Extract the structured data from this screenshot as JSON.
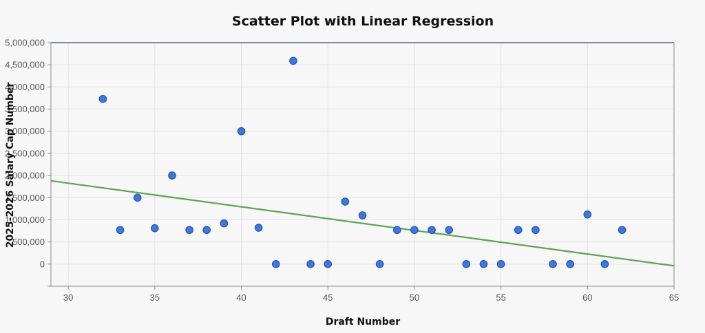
{
  "chart_data": {
    "type": "scatter",
    "title": "Scatter Plot with Linear Regression",
    "xlabel": "Draft Number",
    "ylabel": "2025-2026 Salary Cap Number",
    "xlim": [
      29,
      65
    ],
    "ylim": [
      -500000,
      5000000
    ],
    "x_ticks": [
      30,
      35,
      40,
      45,
      50,
      55,
      60,
      65
    ],
    "x_tick_labels": [
      "30",
      "35",
      "40",
      "45",
      "50",
      "55",
      "60",
      "65"
    ],
    "y_ticks": [
      0,
      500000,
      1000000,
      1500000,
      2000000,
      2500000,
      3000000,
      3500000,
      4000000,
      4500000,
      5000000
    ],
    "y_tick_labels": [
      "0",
      "500,000",
      "1,000,000",
      "1,500,000",
      "2,000,000",
      "2,500,000",
      "3,000,000",
      "3,500,000",
      "4,000,000",
      "4,500,000",
      "5,000,000"
    ],
    "grid": true,
    "points": [
      {
        "x": 32,
        "y": 3730000
      },
      {
        "x": 33,
        "y": 770000
      },
      {
        "x": 34,
        "y": 1500000
      },
      {
        "x": 35,
        "y": 810000
      },
      {
        "x": 36,
        "y": 2000000
      },
      {
        "x": 37,
        "y": 770000
      },
      {
        "x": 38,
        "y": 770000
      },
      {
        "x": 39,
        "y": 920000
      },
      {
        "x": 40,
        "y": 3000000
      },
      {
        "x": 41,
        "y": 820000
      },
      {
        "x": 42,
        "y": 0
      },
      {
        "x": 43,
        "y": 4590000
      },
      {
        "x": 44,
        "y": 0
      },
      {
        "x": 45,
        "y": 0
      },
      {
        "x": 46,
        "y": 1410000
      },
      {
        "x": 47,
        "y": 1100000
      },
      {
        "x": 48,
        "y": 0
      },
      {
        "x": 49,
        "y": 770000
      },
      {
        "x": 50,
        "y": 770000
      },
      {
        "x": 51,
        "y": 770000
      },
      {
        "x": 52,
        "y": 770000
      },
      {
        "x": 53,
        "y": 0
      },
      {
        "x": 54,
        "y": 0
      },
      {
        "x": 55,
        "y": 0
      },
      {
        "x": 56,
        "y": 770000
      },
      {
        "x": 57,
        "y": 770000
      },
      {
        "x": 58,
        "y": 0
      },
      {
        "x": 59,
        "y": 0
      },
      {
        "x": 60,
        "y": 1120000
      },
      {
        "x": 61,
        "y": 0
      },
      {
        "x": 62,
        "y": 770000
      }
    ],
    "regression": {
      "x_start": 29,
      "y_start": 1880000,
      "x_end": 65,
      "y_end": -40000
    },
    "colors": {
      "point": "#3b78e0",
      "line": "#5aa552"
    }
  }
}
